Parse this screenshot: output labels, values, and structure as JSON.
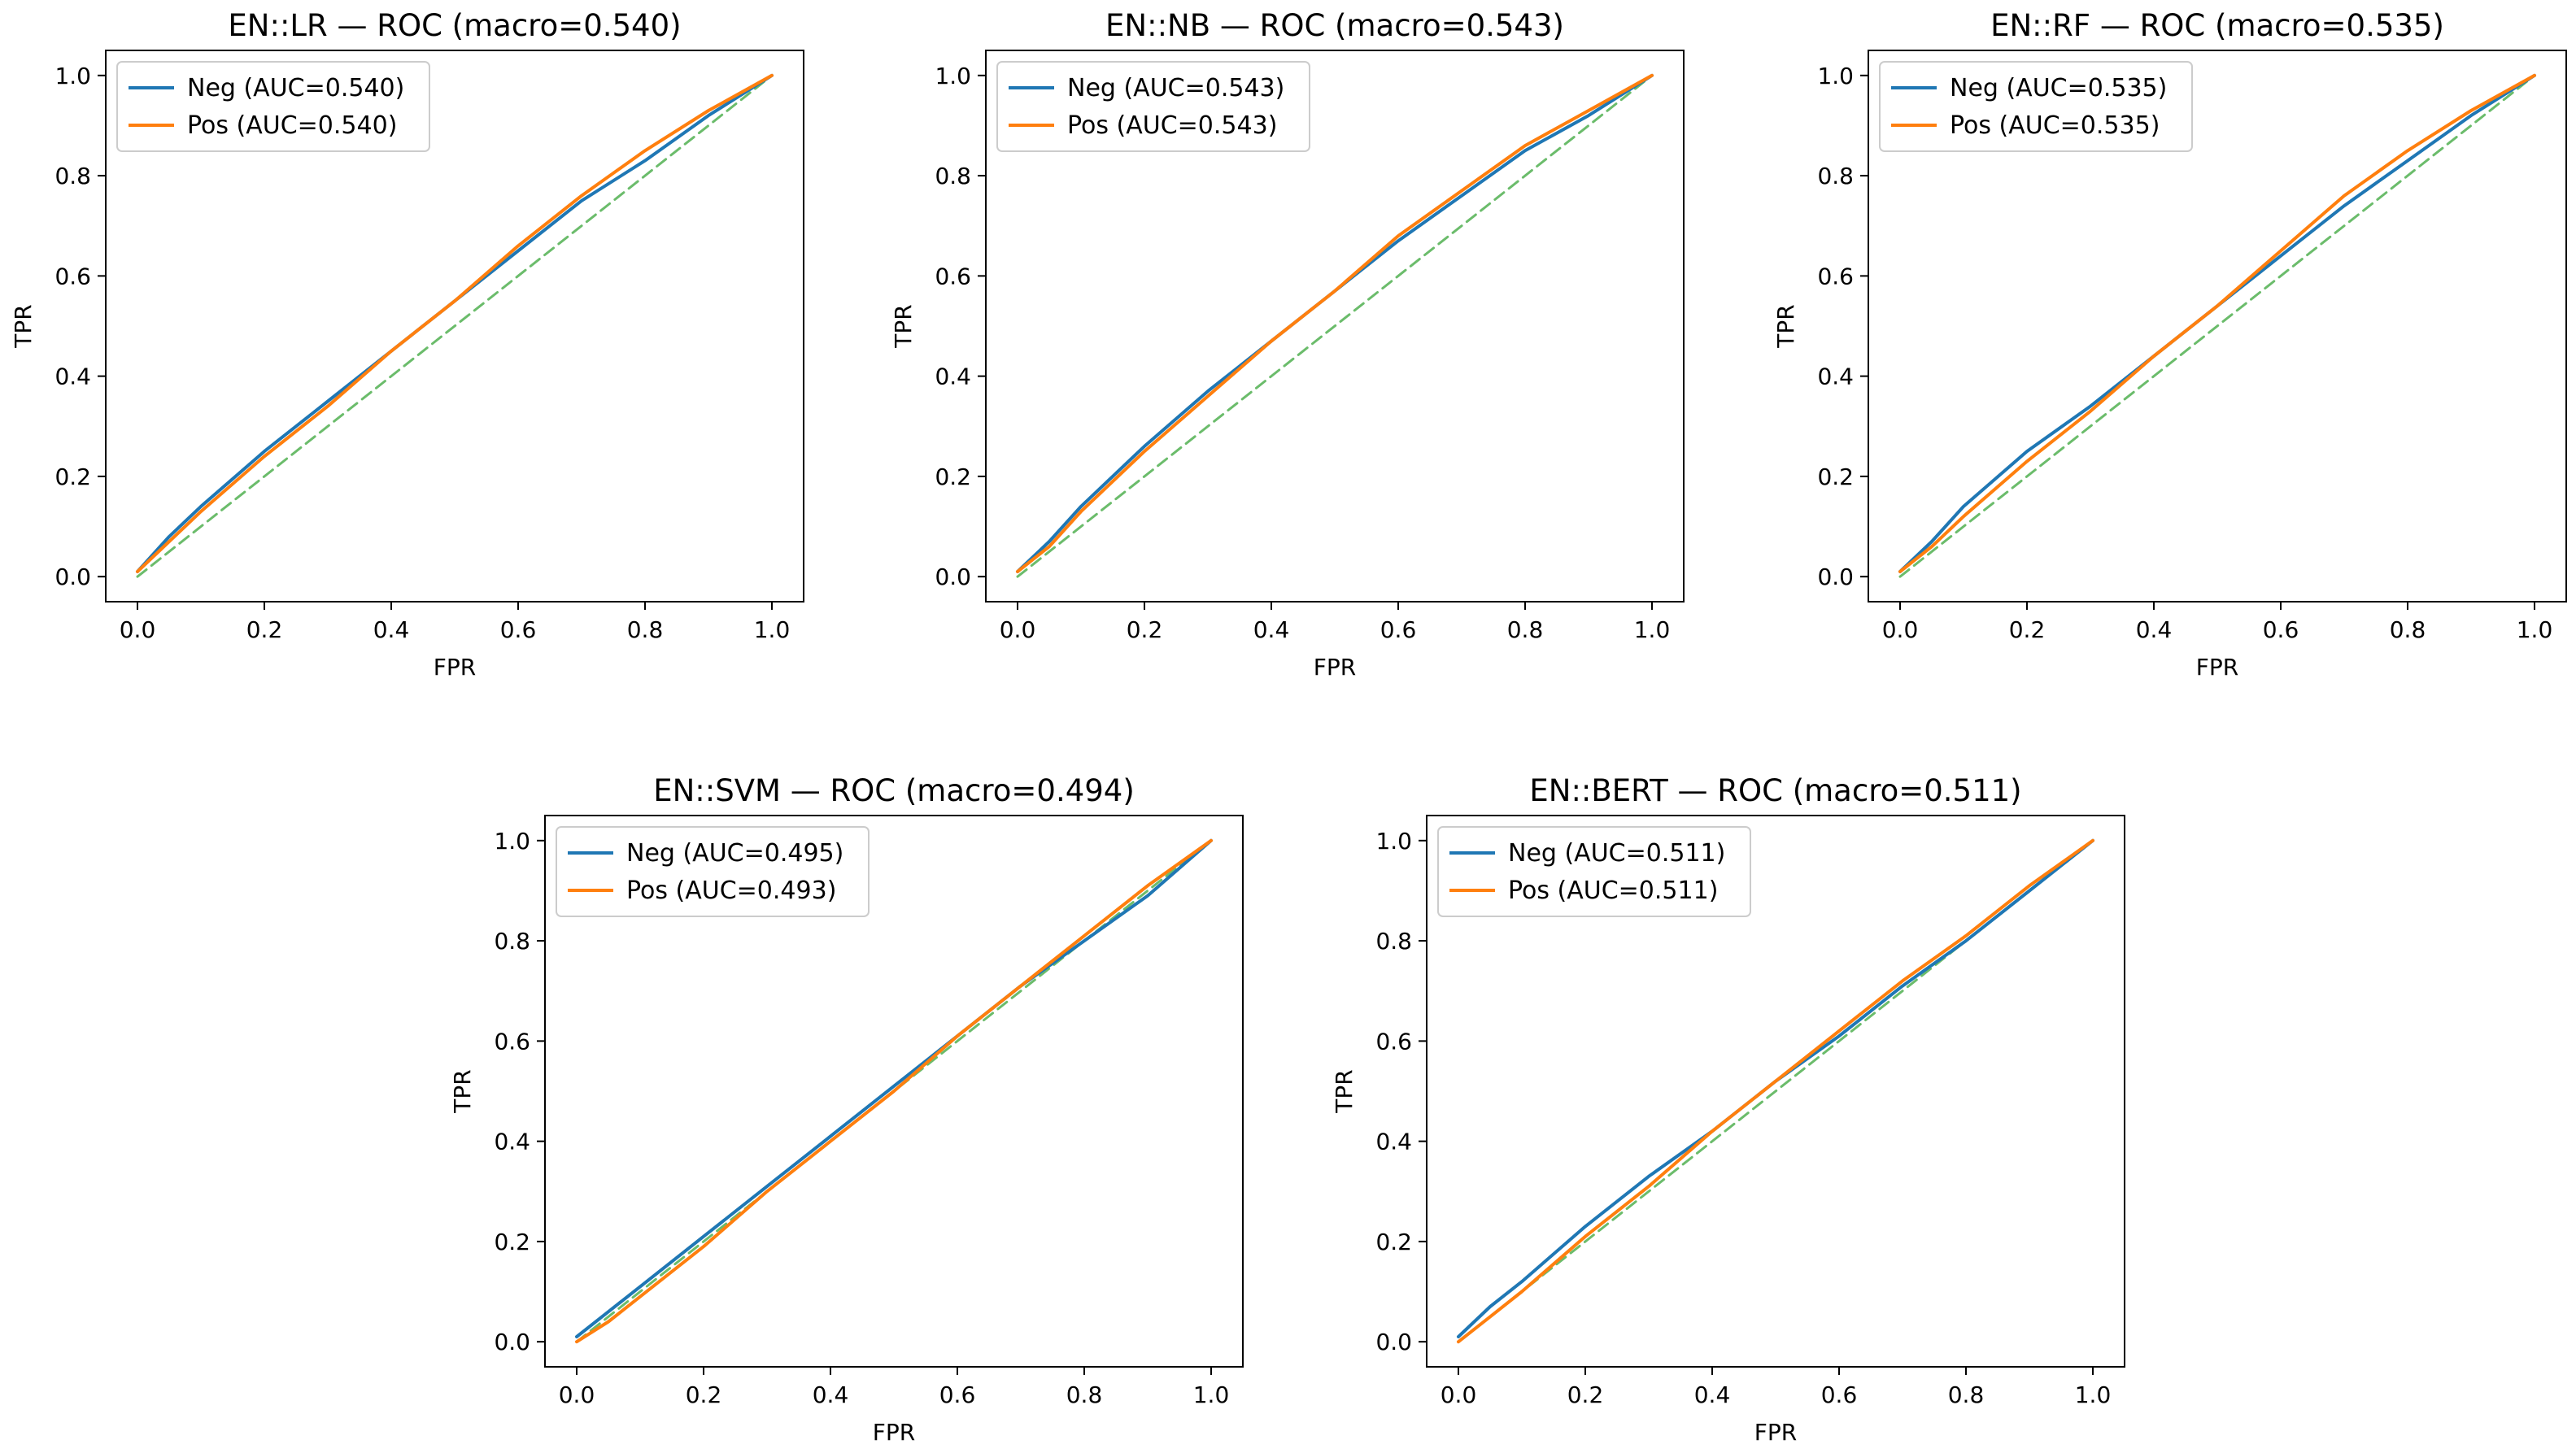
{
  "colors": {
    "neg": "#1f77b4",
    "pos": "#ff7f0e",
    "chance": "#2ca02c"
  },
  "chart_data": [
    {
      "type": "line",
      "title": "EN::LR — ROC (macro=0.540)",
      "xlabel": "FPR",
      "ylabel": "TPR",
      "xlim": [
        0,
        1
      ],
      "ylim": [
        0,
        1
      ],
      "xticks": [
        "0.0",
        "0.2",
        "0.4",
        "0.6",
        "0.8",
        "1.0"
      ],
      "yticks": [
        "0.0",
        "0.2",
        "0.4",
        "0.6",
        "0.8",
        "1.0"
      ],
      "legend_position": "upper-left",
      "series": [
        {
          "name": "Neg (AUC=0.540)",
          "color": "#1f77b4",
          "dashed": false,
          "x": [
            0,
            0.05,
            0.1,
            0.2,
            0.3,
            0.4,
            0.5,
            0.6,
            0.7,
            0.8,
            0.9,
            1.0
          ],
          "y": [
            0.01,
            0.08,
            0.14,
            0.25,
            0.35,
            0.45,
            0.55,
            0.65,
            0.75,
            0.83,
            0.92,
            1.0
          ]
        },
        {
          "name": "Pos (AUC=0.540)",
          "color": "#ff7f0e",
          "dashed": false,
          "x": [
            0,
            0.05,
            0.1,
            0.2,
            0.3,
            0.4,
            0.5,
            0.6,
            0.7,
            0.8,
            0.9,
            1.0
          ],
          "y": [
            0.01,
            0.07,
            0.13,
            0.24,
            0.34,
            0.45,
            0.55,
            0.66,
            0.76,
            0.85,
            0.93,
            1.0
          ]
        },
        {
          "name": "chance",
          "color": "#2ca02c",
          "dashed": true,
          "legend": false,
          "x": [
            0,
            1
          ],
          "y": [
            0,
            1
          ]
        }
      ]
    },
    {
      "type": "line",
      "title": "EN::NB — ROC (macro=0.543)",
      "xlabel": "FPR",
      "ylabel": "TPR",
      "xlim": [
        0,
        1
      ],
      "ylim": [
        0,
        1
      ],
      "xticks": [
        "0.0",
        "0.2",
        "0.4",
        "0.6",
        "0.8",
        "1.0"
      ],
      "yticks": [
        "0.0",
        "0.2",
        "0.4",
        "0.6",
        "0.8",
        "1.0"
      ],
      "legend_position": "upper-left",
      "series": [
        {
          "name": "Neg (AUC=0.543)",
          "color": "#1f77b4",
          "dashed": false,
          "x": [
            0,
            0.05,
            0.1,
            0.2,
            0.3,
            0.4,
            0.5,
            0.6,
            0.7,
            0.8,
            0.9,
            1.0
          ],
          "y": [
            0.01,
            0.07,
            0.14,
            0.26,
            0.37,
            0.47,
            0.57,
            0.67,
            0.76,
            0.85,
            0.92,
            1.0
          ]
        },
        {
          "name": "Pos (AUC=0.543)",
          "color": "#ff7f0e",
          "dashed": false,
          "x": [
            0,
            0.05,
            0.1,
            0.2,
            0.3,
            0.4,
            0.5,
            0.6,
            0.7,
            0.8,
            0.9,
            1.0
          ],
          "y": [
            0.01,
            0.06,
            0.13,
            0.25,
            0.36,
            0.47,
            0.57,
            0.68,
            0.77,
            0.86,
            0.93,
            1.0
          ]
        },
        {
          "name": "chance",
          "color": "#2ca02c",
          "dashed": true,
          "legend": false,
          "x": [
            0,
            1
          ],
          "y": [
            0,
            1
          ]
        }
      ]
    },
    {
      "type": "line",
      "title": "EN::RF — ROC (macro=0.535)",
      "xlabel": "FPR",
      "ylabel": "TPR",
      "xlim": [
        0,
        1
      ],
      "ylim": [
        0,
        1
      ],
      "xticks": [
        "0.0",
        "0.2",
        "0.4",
        "0.6",
        "0.8",
        "1.0"
      ],
      "yticks": [
        "0.0",
        "0.2",
        "0.4",
        "0.6",
        "0.8",
        "1.0"
      ],
      "legend_position": "upper-left",
      "series": [
        {
          "name": "Neg (AUC=0.535)",
          "color": "#1f77b4",
          "dashed": false,
          "x": [
            0,
            0.05,
            0.1,
            0.2,
            0.3,
            0.4,
            0.5,
            0.6,
            0.7,
            0.8,
            0.9,
            1.0
          ],
          "y": [
            0.01,
            0.07,
            0.14,
            0.25,
            0.34,
            0.44,
            0.54,
            0.64,
            0.74,
            0.83,
            0.92,
            1.0
          ]
        },
        {
          "name": "Pos (AUC=0.535)",
          "color": "#ff7f0e",
          "dashed": false,
          "x": [
            0,
            0.05,
            0.1,
            0.2,
            0.3,
            0.4,
            0.5,
            0.6,
            0.7,
            0.8,
            0.9,
            1.0
          ],
          "y": [
            0.01,
            0.06,
            0.12,
            0.23,
            0.33,
            0.44,
            0.54,
            0.65,
            0.76,
            0.85,
            0.93,
            1.0
          ]
        },
        {
          "name": "chance",
          "color": "#2ca02c",
          "dashed": true,
          "legend": false,
          "x": [
            0,
            1
          ],
          "y": [
            0,
            1
          ]
        }
      ]
    },
    {
      "type": "line",
      "title": "EN::SVM — ROC (macro=0.494)",
      "xlabel": "FPR",
      "ylabel": "TPR",
      "xlim": [
        0,
        1
      ],
      "ylim": [
        0,
        1
      ],
      "xticks": [
        "0.0",
        "0.2",
        "0.4",
        "0.6",
        "0.8",
        "1.0"
      ],
      "yticks": [
        "0.0",
        "0.2",
        "0.4",
        "0.6",
        "0.8",
        "1.0"
      ],
      "legend_position": "upper-left",
      "series": [
        {
          "name": "Neg (AUC=0.495)",
          "color": "#1f77b4",
          "dashed": false,
          "x": [
            0,
            0.05,
            0.1,
            0.2,
            0.3,
            0.4,
            0.5,
            0.6,
            0.7,
            0.8,
            0.9,
            1.0
          ],
          "y": [
            0.01,
            0.06,
            0.11,
            0.21,
            0.31,
            0.41,
            0.51,
            0.61,
            0.71,
            0.8,
            0.89,
            1.0
          ]
        },
        {
          "name": "Pos (AUC=0.493)",
          "color": "#ff7f0e",
          "dashed": false,
          "x": [
            0,
            0.05,
            0.1,
            0.2,
            0.3,
            0.4,
            0.5,
            0.6,
            0.7,
            0.8,
            0.9,
            1.0
          ],
          "y": [
            0.0,
            0.04,
            0.09,
            0.19,
            0.3,
            0.4,
            0.5,
            0.61,
            0.71,
            0.81,
            0.91,
            1.0
          ]
        },
        {
          "name": "chance",
          "color": "#2ca02c",
          "dashed": true,
          "legend": false,
          "x": [
            0,
            1
          ],
          "y": [
            0,
            1
          ]
        }
      ]
    },
    {
      "type": "line",
      "title": "EN::BERT — ROC (macro=0.511)",
      "xlabel": "FPR",
      "ylabel": "TPR",
      "xlim": [
        0,
        1
      ],
      "ylim": [
        0,
        1
      ],
      "xticks": [
        "0.0",
        "0.2",
        "0.4",
        "0.6",
        "0.8",
        "1.0"
      ],
      "yticks": [
        "0.0",
        "0.2",
        "0.4",
        "0.6",
        "0.8",
        "1.0"
      ],
      "legend_position": "upper-left",
      "series": [
        {
          "name": "Neg (AUC=0.511)",
          "color": "#1f77b4",
          "dashed": false,
          "x": [
            0,
            0.05,
            0.1,
            0.2,
            0.3,
            0.4,
            0.5,
            0.6,
            0.7,
            0.8,
            0.9,
            1.0
          ],
          "y": [
            0.01,
            0.07,
            0.12,
            0.23,
            0.33,
            0.42,
            0.52,
            0.61,
            0.71,
            0.8,
            0.9,
            1.0
          ]
        },
        {
          "name": "Pos (AUC=0.511)",
          "color": "#ff7f0e",
          "dashed": false,
          "x": [
            0,
            0.05,
            0.1,
            0.2,
            0.3,
            0.4,
            0.5,
            0.6,
            0.7,
            0.8,
            0.9,
            1.0
          ],
          "y": [
            0.0,
            0.05,
            0.1,
            0.21,
            0.31,
            0.42,
            0.52,
            0.62,
            0.72,
            0.81,
            0.91,
            1.0
          ]
        },
        {
          "name": "chance",
          "color": "#2ca02c",
          "dashed": true,
          "legend": false,
          "x": [
            0,
            1
          ],
          "y": [
            0,
            1
          ]
        }
      ]
    }
  ]
}
